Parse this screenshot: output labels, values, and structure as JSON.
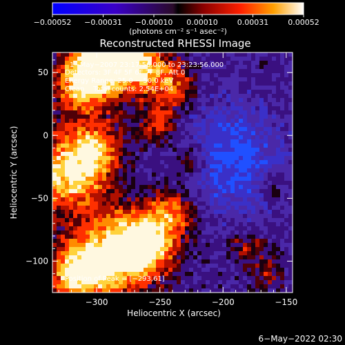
{
  "chart_data": {
    "type": "heatmap",
    "title": "Reconstructed RHESSI Image",
    "xlabel": "Heliocentric X (arcsec)",
    "ylabel": "Heliocentric Y (arcsec)",
    "xlim": [
      -335,
      -145
    ],
    "ylim": [
      -125,
      66
    ],
    "x_ticks": [
      -300,
      -250,
      -200,
      -150
    ],
    "x_tick_labels": [
      "−300",
      "−250",
      "−200",
      "−150"
    ],
    "y_ticks": [
      -100,
      -50,
      0,
      50
    ],
    "y_tick_labels": [
      "−100",
      "−50",
      "0",
      "50"
    ],
    "colorbar": {
      "range": [
        -0.00052,
        0.00052
      ],
      "ticks": [
        -0.00052,
        -0.00031,
        -0.0001,
        0.0001,
        0.00031,
        0.00052
      ],
      "tick_labels": [
        "−0.00052",
        "−0.00031",
        "−0.00010",
        "0.00010",
        "0.00031",
        "0.00052"
      ],
      "unit_label": "(photons cm⁻² s⁻¹ asec⁻²)"
    },
    "annotations": [
      "1−May−2007 23:17:56.000 to 23:23:56.000",
      "Detectors: 3F 4F 5F 6F 7F 8F, Att 0",
      "Energy Range: 25.0 − 50.0 keV",
      "Clean    Total counts: 2.54E+04",
      "Position of Peak = [−293,61]"
    ],
    "peak_position": [
      -293,
      61
    ],
    "grid": false
  },
  "footer": {
    "timestamp": "6−May−2022 02:30"
  }
}
